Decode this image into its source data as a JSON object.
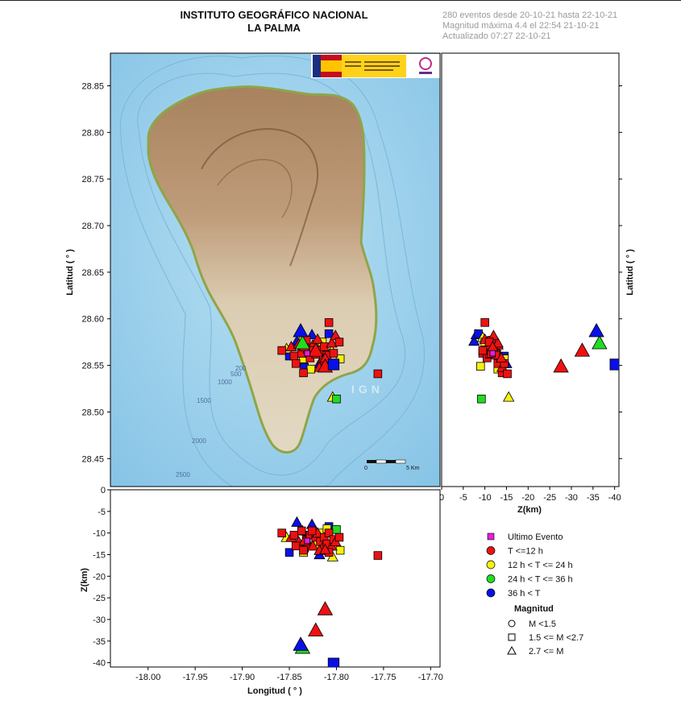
{
  "header": {
    "title1": "INSTITUTO GEOGRÁFICO NACIONAL",
    "title2": "LA PALMA",
    "info1": "280 eventos desde 20-10-21 hasta 22-10-21",
    "info2": "Magnitud máxima 4.4 el 22:54 21-10-21",
    "info3": "Actualizado   07:27  22-10-21"
  },
  "map": {
    "watermark": "IGN",
    "scale_start": "0",
    "scale_end": "5 Km",
    "contours": [
      "200",
      "500",
      "1000",
      "1500",
      "2000",
      "2500"
    ]
  },
  "colors": {
    "ocean": "#9fd2ec",
    "ocean_deep": "#86c3e6",
    "land_low": "#ddd1b8",
    "land_high": "#b08a64",
    "coast": "#8fa548",
    "last_event": "#e020e0",
    "t12": "#ee1111",
    "t24": "#f7f20a",
    "t36": "#20dd20",
    "t36plus": "#0a10e6"
  },
  "chart_data": {
    "type": "scatter",
    "panels": [
      "map Longitud vs Latitud",
      "Z vs Latitud",
      "Longitud vs Z"
    ],
    "map_axes": {
      "ylabel_left": "Latitud ( ° )",
      "ylabel_right": "Latitud ( ° )",
      "xlim": [
        -18.04,
        -17.69
      ],
      "ylim": [
        28.42,
        28.885
      ],
      "yticks": [
        "28.45",
        "28.50",
        "28.55",
        "28.60",
        "28.65",
        "28.70",
        "28.75",
        "28.80",
        "28.85"
      ]
    },
    "depth_axes": {
      "xlabel": "Z(km)",
      "xlim": [
        0,
        -41
      ],
      "xticks": [
        "0",
        "-5",
        "-10",
        "-15",
        "-20",
        "-25",
        "-30",
        "-35",
        "-40"
      ]
    },
    "bottom_axes": {
      "xlabel": "Longitud ( ° )",
      "ylabel": "Z(km)",
      "xlim": [
        -18.04,
        -17.69
      ],
      "ylim": [
        0,
        -41
      ],
      "xticks": [
        "-18.00",
        "-17.95",
        "-17.90",
        "-17.85",
        "-17.80",
        "-17.75",
        "-17.70"
      ],
      "yticks": [
        "0",
        "-5",
        "-10",
        "-15",
        "-20",
        "-25",
        "-30",
        "-35",
        "-40"
      ]
    },
    "legend": {
      "items": [
        {
          "label": "Ultimo Evento",
          "color": "#e020e0"
        },
        {
          "label": "         T <=12 h",
          "color": "#ee1111"
        },
        {
          "label": "12 h  < T <= 24 h",
          "color": "#f7f20a"
        },
        {
          "label": "24 h  < T <= 36 h",
          "color": "#20dd20"
        },
        {
          "label": "36 h <  T",
          "color": "#0a10e6"
        }
      ],
      "mag_title": "Magnitud",
      "mag_items": [
        "          M <1.5",
        "1.5 <= M <2.7",
        "2.7 <= M"
      ]
    },
    "events": [
      {
        "lon": -17.842,
        "lat": 28.576,
        "z": -7.5,
        "cat": "t36plus",
        "shape": "tri"
      },
      {
        "lon": -17.826,
        "lat": 28.583,
        "z": -8.0,
        "cat": "t36plus",
        "shape": "tri"
      },
      {
        "lon": -17.808,
        "lat": 28.584,
        "z": -8.5,
        "cat": "t36plus",
        "shape": "sq"
      },
      {
        "lon": -17.85,
        "lat": 28.56,
        "z": -14.5,
        "cat": "t36plus",
        "shape": "sq"
      },
      {
        "lon": -17.818,
        "lat": 28.552,
        "z": -15.0,
        "cat": "t36plus",
        "shape": "tri"
      },
      {
        "lon": -17.834,
        "lat": 28.548,
        "z": -13.5,
        "cat": "t36plus",
        "shape": "sq"
      },
      {
        "lon": -17.836,
        "lat": 28.58,
        "z": -9.5,
        "cat": "t24",
        "shape": "tri"
      },
      {
        "lon": -17.815,
        "lat": 28.575,
        "z": -10.0,
        "cat": "t24",
        "shape": "sq"
      },
      {
        "lon": -17.805,
        "lat": 28.566,
        "z": -12.0,
        "cat": "t24",
        "shape": "tri"
      },
      {
        "lon": -17.827,
        "lat": 28.546,
        "z": -13.0,
        "cat": "t24",
        "shape": "sq"
      },
      {
        "lon": -17.853,
        "lat": 28.568,
        "z": -11.0,
        "cat": "t24",
        "shape": "tri"
      },
      {
        "lon": -17.796,
        "lat": 28.557,
        "z": -14.0,
        "cat": "t24",
        "shape": "sq"
      },
      {
        "lon": -17.835,
        "lat": 28.557,
        "z": -14.5,
        "cat": "t24",
        "shape": "sq"
      },
      {
        "lon": -17.822,
        "lat": 28.57,
        "z": -12.5,
        "cat": "t24",
        "shape": "tri"
      },
      {
        "lon": -17.81,
        "lat": 28.549,
        "z": -9.0,
        "cat": "t24",
        "shape": "sq"
      },
      {
        "lon": -17.804,
        "lat": 28.516,
        "z": -15.5,
        "cat": "t24",
        "shape": "tri"
      },
      {
        "lon": -17.8,
        "lat": 28.514,
        "z": -9.2,
        "cat": "t36",
        "shape": "sq"
      },
      {
        "lon": -17.858,
        "lat": 28.566,
        "z": -10.0,
        "cat": "t12",
        "shape": "sq"
      },
      {
        "lon": -17.848,
        "lat": 28.57,
        "z": -11.0,
        "cat": "t12",
        "shape": "tri"
      },
      {
        "lon": -17.845,
        "lat": 28.56,
        "z": -10.5,
        "cat": "t12",
        "shape": "sq"
      },
      {
        "lon": -17.84,
        "lat": 28.573,
        "z": -12.0,
        "cat": "t12",
        "shape": "tri"
      },
      {
        "lon": -17.837,
        "lat": 28.563,
        "z": -9.5,
        "cat": "t12",
        "shape": "sq"
      },
      {
        "lon": -17.832,
        "lat": 28.577,
        "z": -11.5,
        "cat": "t12",
        "shape": "sq"
      },
      {
        "lon": -17.83,
        "lat": 28.568,
        "z": -12.5,
        "cat": "t12",
        "shape": "tri"
      },
      {
        "lon": -17.828,
        "lat": 28.558,
        "z": -10.5,
        "cat": "t12",
        "shape": "sq"
      },
      {
        "lon": -17.825,
        "lat": 28.572,
        "z": -13.0,
        "cat": "t12",
        "shape": "tri"
      },
      {
        "lon": -17.822,
        "lat": 28.562,
        "z": -11.0,
        "cat": "t12",
        "shape": "sq"
      },
      {
        "lon": -17.82,
        "lat": 28.578,
        "z": -10.0,
        "cat": "t12",
        "shape": "tri"
      },
      {
        "lon": -17.817,
        "lat": 28.566,
        "z": -12.0,
        "cat": "t12",
        "shape": "sq"
      },
      {
        "lon": -17.815,
        "lat": 28.556,
        "z": -13.5,
        "cat": "t12",
        "shape": "tri"
      },
      {
        "lon": -17.813,
        "lat": 28.57,
        "z": -11.0,
        "cat": "t12",
        "shape": "sq"
      },
      {
        "lon": -17.81,
        "lat": 28.561,
        "z": -12.5,
        "cat": "t12",
        "shape": "sq"
      },
      {
        "lon": -17.808,
        "lat": 28.596,
        "z": -10.0,
        "cat": "t12",
        "shape": "sq"
      },
      {
        "lon": -17.805,
        "lat": 28.574,
        "z": -13.0,
        "cat": "t12",
        "shape": "tri"
      },
      {
        "lon": -17.803,
        "lat": 28.563,
        "z": -11.5,
        "cat": "t12",
        "shape": "sq"
      },
      {
        "lon": -17.801,
        "lat": 28.582,
        "z": -12.0,
        "cat": "t12",
        "shape": "tri"
      },
      {
        "lon": -17.797,
        "lat": 28.575,
        "z": -11.0,
        "cat": "t12",
        "shape": "sq"
      },
      {
        "lon": -17.843,
        "lat": 28.552,
        "z": -13.0,
        "cat": "t12",
        "shape": "sq"
      },
      {
        "lon": -17.835,
        "lat": 28.542,
        "z": -14.0,
        "cat": "t12",
        "shape": "sq"
      },
      {
        "lon": -17.818,
        "lat": 28.548,
        "z": -14.0,
        "cat": "t12",
        "shape": "tri"
      },
      {
        "lon": -17.808,
        "lat": 28.552,
        "z": -14.5,
        "cat": "t12",
        "shape": "sq"
      },
      {
        "lon": -17.826,
        "lat": 28.566,
        "z": -9.5,
        "cat": "t12",
        "shape": "sq"
      },
      {
        "lon": -17.834,
        "lat": 28.57,
        "z": -11.8,
        "cat": "t12",
        "shape": "tri"
      },
      {
        "lon": -17.812,
        "lat": 28.558,
        "z": -13.8,
        "cat": "t12",
        "shape": "tri"
      },
      {
        "lon": -17.756,
        "lat": 28.541,
        "z": -15.2,
        "cat": "t12",
        "shape": "sq"
      },
      {
        "lon": -17.812,
        "lat": 28.549,
        "z": -27.6,
        "cat": "t12",
        "shape": "tri"
      },
      {
        "lon": -17.822,
        "lat": 28.566,
        "z": -32.5,
        "cat": "t12",
        "shape": "tri"
      },
      {
        "lon": -17.836,
        "lat": 28.574,
        "z": -36.5,
        "cat": "t36",
        "shape": "tri"
      },
      {
        "lon": -17.838,
        "lat": 28.587,
        "z": -35.8,
        "cat": "t36plus",
        "shape": "tri"
      },
      {
        "lon": -17.803,
        "lat": 28.551,
        "z": -40.2,
        "cat": "t36plus",
        "shape": "sq"
      },
      {
        "lon": -17.831,
        "lat": 28.563,
        "z": -11.8,
        "cat": "last_event",
        "shape": "sq"
      }
    ]
  }
}
